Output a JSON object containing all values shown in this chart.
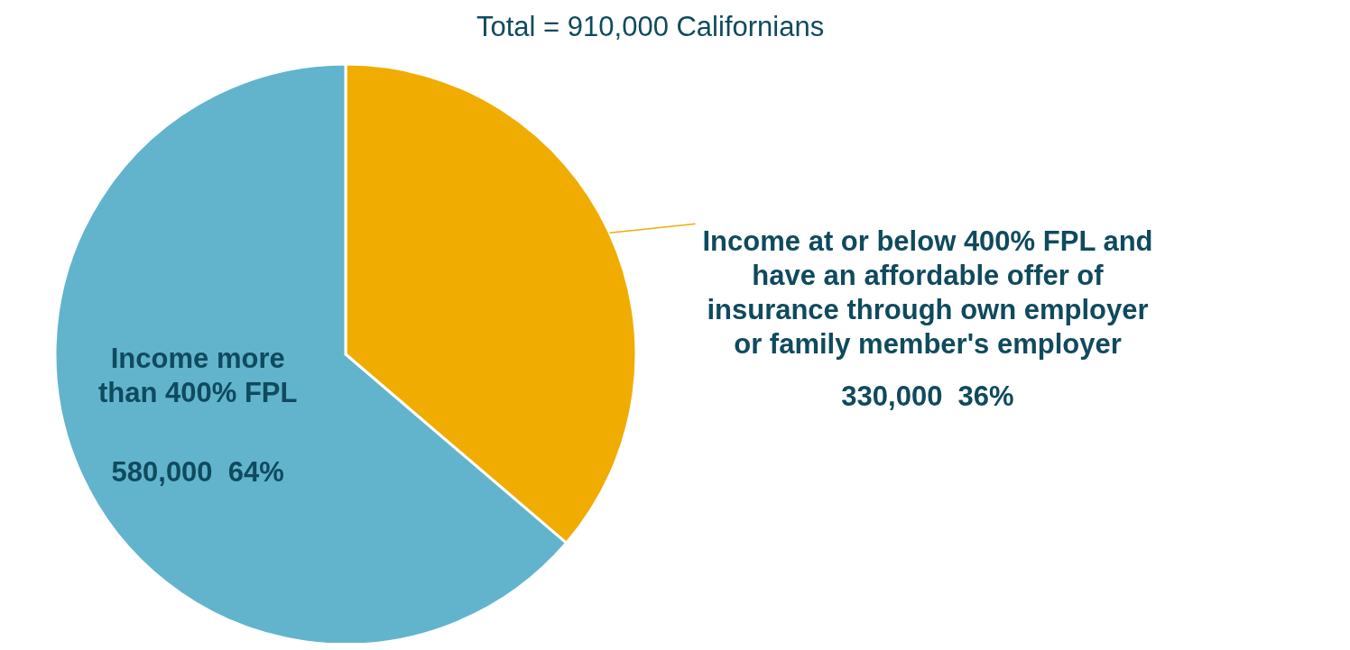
{
  "chart_data": {
    "type": "pie",
    "title": "Total = 910,000 Californians",
    "categories": [
      "Income at or below 400% FPL and have an affordable offer of insurance through own employer or family member's employer",
      "Income more than 400% FPL"
    ],
    "values": [
      330000,
      580000
    ],
    "colors": [
      "#f0ac00",
      "#62b4cc"
    ],
    "value_labels": [
      "330,000  36%",
      "580,000  64%"
    ]
  }
}
